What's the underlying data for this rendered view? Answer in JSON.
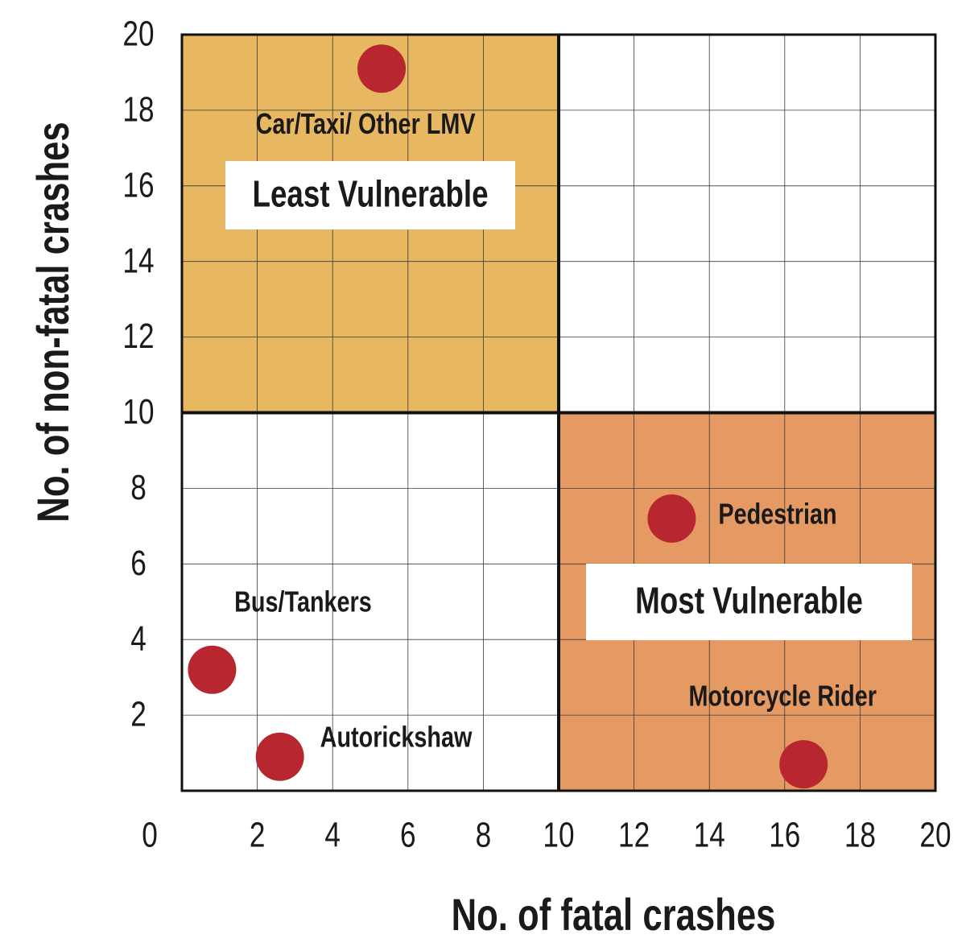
{
  "chart_data": {
    "type": "scatter",
    "x_label": "No. of fatal crashes",
    "y_label": "No. of non-fatal crashes",
    "xlim": [
      0,
      20
    ],
    "ylim": [
      0,
      20
    ],
    "xticks": [
      0,
      2,
      4,
      6,
      8,
      10,
      12,
      14,
      16,
      18,
      20
    ],
    "yticks": [
      2,
      4,
      6,
      8,
      10,
      12,
      14,
      16,
      18,
      20
    ],
    "grid": true,
    "x_threshold": 10,
    "y_threshold": 10,
    "quadrants": [
      {
        "label": "Least Vulnerable",
        "position": "top-left",
        "color": "#e8b762",
        "label_color": "#b3262e"
      },
      {
        "label": "Most Vulnerable",
        "position": "bottom-right",
        "color": "#e49a62",
        "label_color": "#b3262e"
      }
    ],
    "color": "#b8272f",
    "points": [
      {
        "label": "Car/Taxi/ Other LMV",
        "x": 5.3,
        "y": 19.1
      },
      {
        "label": "Bus/Tankers",
        "x": 0.8,
        "y": 3.2
      },
      {
        "label": "Autorickshaw",
        "x": 2.6,
        "y": 0.9
      },
      {
        "label": "Pedestrian",
        "x": 13.0,
        "y": 7.2
      },
      {
        "label": "Motorcycle Rider",
        "x": 16.5,
        "y": 0.7
      }
    ]
  }
}
